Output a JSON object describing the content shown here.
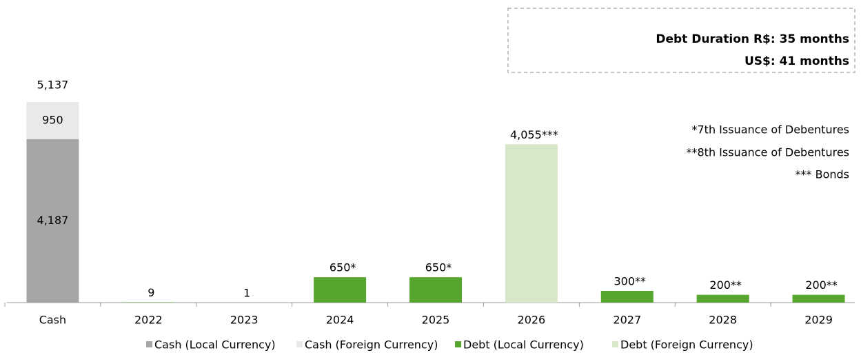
{
  "chart_data": {
    "type": "bar",
    "stacked": true,
    "categories": [
      "Cash",
      "2022",
      "2023",
      "2024",
      "2025",
      "2026",
      "2027",
      "2028",
      "2029"
    ],
    "series": [
      {
        "name": "Cash (Local Currency)",
        "color": "#a6a6a6",
        "values": [
          4187,
          null,
          null,
          null,
          null,
          null,
          null,
          null,
          null
        ],
        "value_labels": [
          "4,187",
          null,
          null,
          null,
          null,
          null,
          null,
          null,
          null
        ]
      },
      {
        "name": "Cash (Foreign Currency)",
        "color": "#e9e9e9",
        "values": [
          950,
          null,
          null,
          null,
          null,
          null,
          null,
          null,
          null
        ]
      },
      {
        "name": "Debt (Local Currency)",
        "color": "#56a52e",
        "values": [
          null,
          9,
          1,
          650,
          650,
          null,
          300,
          200,
          200
        ],
        "value_labels": [
          null,
          "9",
          "1",
          "650*",
          "650*",
          null,
          "300**",
          "200**",
          "200**"
        ]
      },
      {
        "name": "Debt (Foreign Currency)",
        "color": "#d6e8c8",
        "values": [
          null,
          null,
          null,
          null,
          null,
          4055,
          null,
          null,
          null
        ],
        "value_labels": [
          null,
          null,
          null,
          null,
          null,
          "4,055***",
          null,
          null,
          null
        ]
      }
    ],
    "totals": [
      5137,
      null,
      null,
      null,
      null,
      null,
      null,
      null,
      null
    ],
    "total_labels": [
      "5,137",
      null,
      null,
      null,
      null,
      null,
      null,
      null,
      null
    ],
    "annotations": {
      "duration_box": [
        "Debt Duration  R$:   35 months",
        "US$: 41  months"
      ],
      "notes": [
        "*7th Issuance of Debentures",
        "**8th Issuance of Debentures",
        "*** Bonds"
      ]
    },
    "legend": "bottom"
  }
}
